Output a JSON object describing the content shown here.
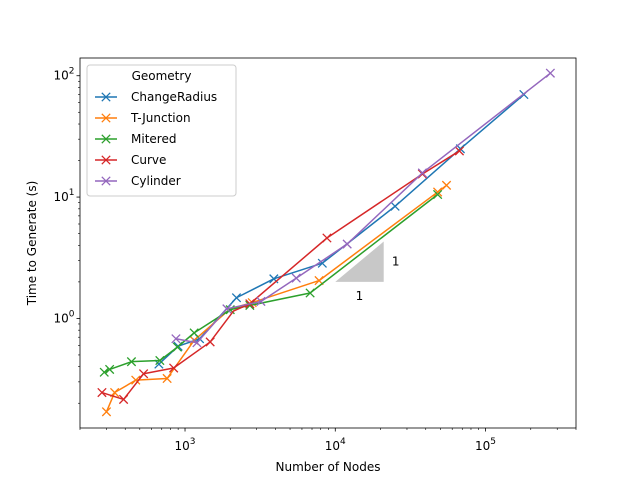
{
  "chart_data": {
    "type": "line",
    "xscale": "log",
    "yscale": "log",
    "xlabel": "Number of Nodes",
    "ylabel": "Time to Generate (s)",
    "xlim": [
      200,
      400000
    ],
    "ylim": [
      0.125,
      140
    ],
    "x_ticks": [
      {
        "value": 1000,
        "base": "10",
        "exp": "3"
      },
      {
        "value": 10000,
        "base": "10",
        "exp": "4"
      },
      {
        "value": 100000,
        "base": "10",
        "exp": "5"
      }
    ],
    "y_ticks": [
      {
        "value": 1,
        "base": "10",
        "exp": "0"
      },
      {
        "value": 10,
        "base": "10",
        "exp": "1"
      },
      {
        "value": 100,
        "base": "10",
        "exp": "2"
      }
    ],
    "legend": {
      "title": "Geometry",
      "position": "upper-left"
    },
    "marker": "x",
    "series": [
      {
        "name": "ChangeRadius",
        "color": "#1f77b4",
        "x": [
          670,
          900,
          1250,
          2200,
          3900,
          8200,
          25000,
          68000,
          180000
        ],
        "y": [
          0.42,
          0.59,
          0.68,
          1.48,
          2.12,
          2.85,
          8.4,
          25,
          70
        ]
      },
      {
        "name": "T-Junction",
        "color": "#ff7f0e",
        "x": [
          300,
          340,
          470,
          760,
          1150,
          2000,
          2800,
          7800,
          48000,
          55000
        ],
        "y": [
          0.17,
          0.245,
          0.31,
          0.32,
          0.66,
          1.2,
          1.35,
          2.05,
          11,
          12.5
        ],
        "skip_marker": [
          5
        ]
      },
      {
        "name": "Mitered",
        "color": "#2ca02c",
        "x": [
          290,
          315,
          440,
          680,
          890,
          1150,
          2000,
          2700,
          6800,
          48000
        ],
        "y": [
          0.36,
          0.38,
          0.44,
          0.45,
          0.58,
          0.76,
          1.18,
          1.28,
          1.62,
          10.5
        ]
      },
      {
        "name": "Curve",
        "color": "#d62728",
        "x": [
          280,
          390,
          530,
          840,
          1470,
          2100,
          2700,
          8800,
          38000,
          67000
        ],
        "y": [
          0.245,
          0.215,
          0.35,
          0.39,
          0.64,
          1.15,
          1.32,
          4.6,
          15.5,
          24
        ],
        "skip_marker": [
          5
        ]
      },
      {
        "name": "Cylinder",
        "color": "#9467bd",
        "x": [
          870,
          1200,
          1900,
          3200,
          5500,
          12000,
          38000,
          270000
        ],
        "y": [
          0.68,
          0.63,
          1.2,
          1.38,
          2.15,
          4.1,
          15.8,
          105
        ]
      }
    ],
    "slope_triangle": {
      "x_start": 10000,
      "x_end": 21000,
      "y_start": 2.0,
      "y_end": 4.3,
      "color": "#c8c8c8",
      "horizontal_label": "1",
      "vertical_label": "1"
    }
  }
}
